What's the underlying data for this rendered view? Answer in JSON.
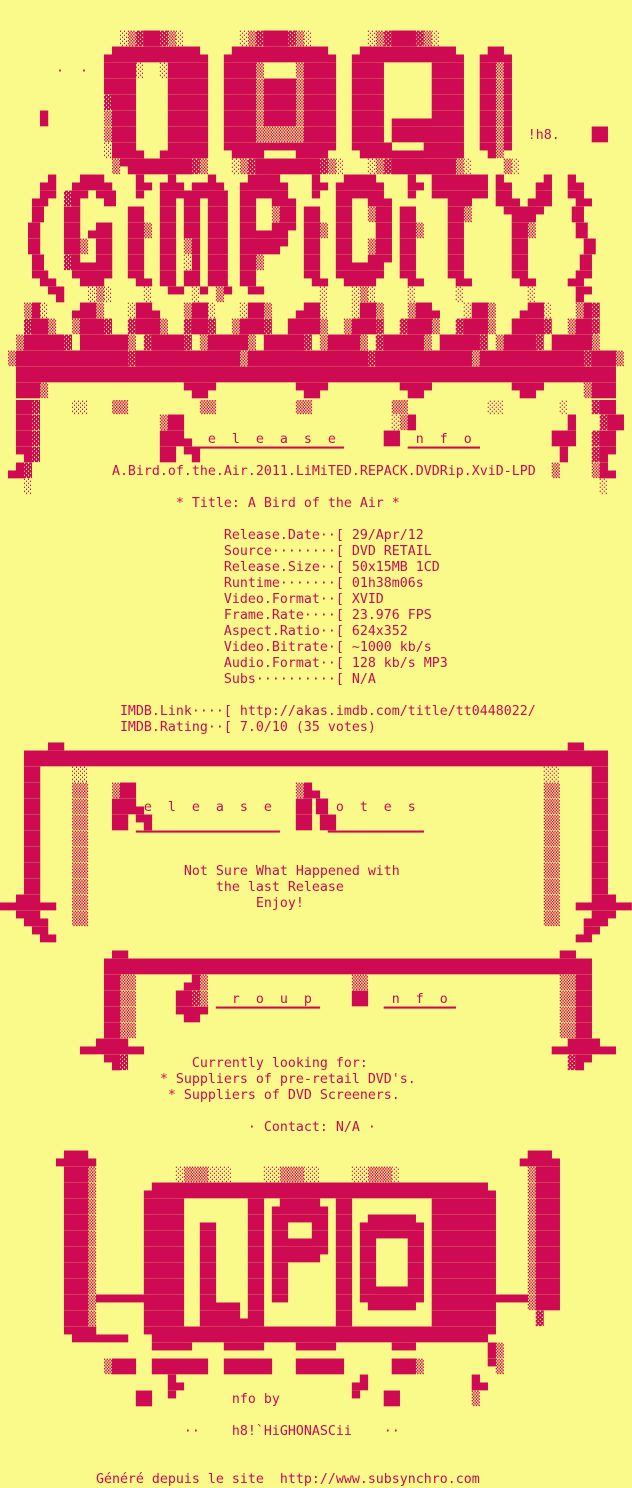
{
  "colors": {
    "background": "#fafa8a",
    "foreground": "#ce0a52"
  },
  "group_name": "LPD",
  "logo_text": "LPD (GiMPiDiTY) LPD",
  "artist_tag": "!h8.",
  "release": {
    "section_header": "Release Info",
    "name": "A.Bird.of.the.Air.2011.LiMiTED.REPACK.DVDRip.XviD-LPD",
    "title_line": "* Title: A Bird of the Air *",
    "fields": [
      {
        "label": "Release.Date",
        "value": "29/Apr/12"
      },
      {
        "label": "Source",
        "value": "DVD RETAIL"
      },
      {
        "label": "Release.Size",
        "value": "50x15MB 1CD"
      },
      {
        "label": "Runtime",
        "value": "01h38m06s"
      },
      {
        "label": "Video.Format",
        "value": "XVID"
      },
      {
        "label": "Frame.Rate",
        "value": "23.976 FPS"
      },
      {
        "label": "Aspect.Ratio",
        "value": "624x352"
      },
      {
        "label": "Video.Bitrate",
        "value": "~1000 kb/s"
      },
      {
        "label": "Audio.Format",
        "value": "128 kb/s MP3"
      },
      {
        "label": "Subs",
        "value": "N/A"
      }
    ],
    "imdb_link": "http://akas.imdb.com/title/tt0448022/",
    "imdb_rating": "7.0/10 (35 votes)"
  },
  "notes": {
    "section_header": "Release Notes",
    "lines": [
      "Not Sure What Happened with",
      "the last Release",
      "Enjoy!"
    ]
  },
  "group": {
    "section_header": "Group Info",
    "looking_for": [
      "Currently looking for:",
      "* Suppliers of pre-retail DVD's.",
      "* Suppliers of DVD Screeners."
    ],
    "contact": "· Contact: N/A ·"
  },
  "credits": {
    "nfo_by_label": "nfo by",
    "nfo_by": "h8!`HiGHONASCii",
    "generated_line": "Généré depuis le site  http://www.subsynchro.com",
    "generator_url": "http://www.subsynchro.com"
  },
  "sections": {
    "logo_top": [
      "",
      "",
      "               ░▒▓██▓▒░       ░▒▓███▓▒░       ░▒▓███▓▒░",
      "             ▄███████████▄  ▄████████████▄  ▄████████████▄  ▄██▄",
      "       ·  ·  ████░  ░█████  ████▒    ▒████  ████      ████  ██▒█",
      "             ████    █████  ████▒████▒████  ████      ████  ██▒█",
      "             ▓███    █████  ████▒████▒████  ████      ████  ██▒█",
      "     █       ▒███    █████  ████▒████▒████  ████ ▄▄▄▄▄████  ██▒█",
      "             ▒███    █████  ████▒▒▒▒▒▒████  ████ █████████  ██▒█  !h8.    ██",
      "             ░███▄  ▄█████  ▀████▀▀▀▀████▀  ▀████▄▄▄▄█████  ▀█▒▀",
      "              ▒▀████████▓▒   ░▒▓████████▓▒░   ░▒▓████████▒░    ▒░",
      "     ▄█  ▄███▄   █▄ ▄█▄ ▄▄█▄  ▄████▄   █▄ ▄████▄   █▄ ███████ █▄   ▄█  █▄",
      "    ▄█▀ ▓█▀ ▀█▌  ▀  ██▀██▀██▌ ██▀▀██▄  ▀  ██▀▀██▄  ▀  ▀▀███▀▀ ██▄ ▄██  ▀█▄",
      "    █▌  ██      ██  ██ ██ ██▌ ██  ▒██ ██  ██  ▒██ ██    ██▒    ▀███▀   ▐█",
      "   ▐█   ██ ▄██  ██▒ ██ ██ ██▌ ██▄▄██▀ ██▒ ██   ██ ██▒   ██      ██▒     █▌",
      "   ▐█   ██▒ ██  ██  ██ ▒█ ██▌ █████▀  ██  ██  ▒██ ██    ██      ██       █▌",
      "    █▌  ▓█▄▄██  ██  ██ ░█ ██▌ ██▒     ██  ██▄▄██▀ ██    ██      ██      ▐█",
      "    ▀█▄  ▀███▀  ▀█▄ ██ ██ ██▌ ██      ▀█▄ ▀████▀  ▀█▄   ▀█▄     ▀█▄    ▄█▀",
      "      ▀█   ░▒░    ░  ▀▀ ░▀ ▒▀  ▀▀       ░   ░▒░    ░     ░        ░     █▀",
      "   ▒█░   ▄██▒   ░██▄   ▒██░   ░██▒   ▄██░   ░██▒   ▒██▄   ░██▒   ▄██░   ▒█▓",
      "   ▓██▒  ▒███▓  ▓███▒  ▓██▓  ▒███▓  ████▒  ▒███▓  ▓███▒  ▓███▒  ████▓  ▒██▓",
      "  ▒█████▓ ██████▒ ▓████▓ ▒█████▒ █████▓ ▒████▒ ▓█████▒ █████▓ ▒████▓ █████▒",
      " ▒██████████████▓█████████████▒███████████████▓████████████▒█████████████▓███▒",
      "  ███████████████████████████████████████████████████████████████████████████",
      "  ███▒                 ▀██▀          ▀██▀         ▀██▀          ▀██▀     ▒███"
    ],
    "release_info": [
      "  ██▓    ░░   ▒▒         ▒▒          ▒▒          ▒▒          ░░       ░   ▓██",
      "  ██▓               ▒██                          ░▒█                   █   ▓██",
      "  ██▓               ███▄  e  l  e  a  s  e      ██  n  f  o          ███  ▓██",
      "  ▀█▓               ██ ▀█▔▔▔▔▔▔▔▔▔▔▔▔▔▔▔▔▔▔        ▔▔▔▔▔▔▔▔▔          █   ▓█▀",
      " ▄█▓          A.Bird.of.the.Air.2011.LiMiTED.REPACK.DVDRip.XviD-LPD  ▒    ▒█▄",
      "   ░                                                                       ░",
      "                      * Title: A Bird of the Air *",
      "",
      "                            Release.Date··[ 29/Apr/12",
      "                            Source········[ DVD RETAIL",
      "                            Release.Size··[ 50x15MB 1CD",
      "                            Runtime·······[ 01h38m06s",
      "                            Video.Format··[ XVID",
      "                            Frame.Rate····[ 23.976 FPS",
      "                            Aspect.Ratio··[ 624x352",
      "                            Video.Bitrate·[ ~1000 kb/s",
      "                            Audio.Format··[ 128 kb/s MP3",
      "                            Subs··········[ N/A",
      "",
      "               IMDB.Link····[ http://akas.imdb.com/title/tt0448022/",
      "               IMDB.Rating··[ 7.0/10 (35 votes)"
    ],
    "notes_box": [
      "      ▄▄                                                               ▄▄",
      "   █████████████████████████████████████████████████████████████████████████",
      "   ██    ░░                                                         ░░    ██",
      "   ██    ▒▒   ▒██                    ▒█▄                            ▒▒    ██",
      "   ██    ▒▒   ███▄e  l  e  a  s  e   ██▐█ o  t  e  s                ▒▒    ██",
      "   ██    ▒▒   ██ ▀█                  ██ ██                          ▒▒    ██",
      "   ██    ▒▒      ▔▔▔▔▔▔▔▔▔▔▔▔▔▔▔▔▔▔      ▔▔▔▔▔▔▔▔▔▔▔▔               ▒▒    ██",
      "   ██    ▒▒                                                         ▒▒    ██",
      "   ██    ▒▒            Not Sure What Happened with                  ▒▒    ██",
      "   ██    ▒▒                the last Release                         ▒▒    ██",
      "▄▄███▄▄  ▒▒                     Enjoy!                              ▒▒  ▄▄███▄▄",
      "  ▀██▄   ▒▒                                                         ▒▒   ▄██▀",
      "    ▀█▄                                                                 ▄█▀"
    ],
    "group_box": [
      "              ▄▄                                                      ▄▄",
      "             █████████████████████████████████████████████████████████████",
      "             ██▒▒      ▄█▒                  ▒▒                        ▒▒██",
      "             ██▒▒     ██▓▒   r  o  u  p     ██   n  f  o              ▒▒██",
      "             ██▒▒     ▀██▀ ▔▔▔▔▔▔▔▔▔▔▔▔▔        ▔▔▔▔▔▔▔▔▔             ▒▒██",
      "             ██▒▒                                                     ▒▒██",
      "          ▄▄████▄▄                                                   ▄▄████▄▄",
      "             ▀█▓        Currently looking for:                         ▓█▀",
      "                    * Suppliers of pre-retail DVD's.",
      "                     * Suppliers of DVD Screeners.",
      "",
      "                               · Contact: N/A ·"
    ],
    "logo_bottom": [
      "",
      "       ▄███▄                                                     ▄███▄",
      "        ███▒          ░▒▒▒░░░    ░░▒▒▒░░    ░░▒▒▒░                ▒███",
      "        ███▒      ▄██████████████████████████████████████████▄    ▒███",
      "        ███▒      █████        ██ ▄█████▄ ██          ████████    ▒███",
      "        ███▒      █████  ▄▄    ██ ██▀▀▀██ ██ ▄██████▄ ████████    ▒███",
      "        ███▒      █████  ██    ██ ██▄▄▄██ ██ ██▀▀▀▀██ ████████    ▒███",
      "        ███▒      █████  ██    ██ ██████▀ ██ ██    ██ ████████    ▒███",
      "        ███▒      █████  ██    ██ ██      ██ ██    ██ ████████    ▒███",
      "        ███▒      █████  ██    ██ ██      ██ ██▄▄▄▄██ ████████    ▒███",
      "        ███▒▀▀▀▀▀▀█████  ██▄▄▄ ██ ▀▀      ██ ▀██████▀ ████████▀▀▀▀▒███",
      "        ███▒      █████  █████▄██         ██          ████████     ▓",
      "        ▀███▄▄▄▄  ▀██████████████████████████████████████████▀",
      "                   ▀▀▀▀▀    ▀▀▀▀▀    ▀▀▀▀▀       ▀▀▀         █▒",
      "             ▒███  ███████  ██████   ██████      ███▒        ▀▒",
      "                     █▄                     ▄█             █▄",
      "                 ██  ▀       nfo by         ▀   ██         ▒"
    ],
    "credits": [
      "",
      "                       ··    h8!`HiGHONASCii    ··",
      "",
      "",
      "            Généré depuis le site  http://www.subsynchro.com"
    ]
  }
}
